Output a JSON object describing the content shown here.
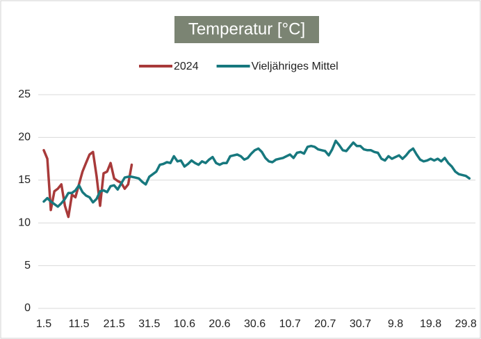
{
  "chart_data": {
    "type": "line",
    "title": "Temperatur [°C]",
    "categories": [
      "1.5",
      null,
      null,
      null,
      null,
      null,
      null,
      null,
      null,
      null,
      "11.5",
      null,
      null,
      null,
      null,
      null,
      null,
      null,
      null,
      null,
      "21.5",
      null,
      null,
      null,
      null,
      null,
      null,
      null,
      null,
      null,
      "31.5",
      null,
      null,
      null,
      null,
      null,
      null,
      null,
      null,
      null,
      "10.6",
      null,
      null,
      null,
      null,
      null,
      null,
      null,
      null,
      null,
      "20.6",
      null,
      null,
      null,
      null,
      null,
      null,
      null,
      null,
      null,
      "30.6",
      null,
      null,
      null,
      null,
      null,
      null,
      null,
      null,
      null,
      "10.7",
      null,
      null,
      null,
      null,
      null,
      null,
      null,
      null,
      null,
      "20.7",
      null,
      null,
      null,
      null,
      null,
      null,
      null,
      null,
      null,
      "30.7",
      null,
      null,
      null,
      null,
      null,
      null,
      null,
      null,
      null,
      "9.8",
      null,
      null,
      null,
      null,
      null,
      null,
      null,
      null,
      null,
      "19.8",
      null,
      null,
      null,
      null,
      null,
      null,
      null,
      null,
      null,
      "29.8",
      null
    ],
    "series": [
      {
        "name": "2024",
        "color": "#a83a3a",
        "values": [
          18.5,
          17.5,
          11.5,
          13.7,
          14.0,
          14.5,
          12.0,
          10.7,
          13.3,
          13.0,
          14.5,
          16.0,
          17.0,
          18.0,
          18.3,
          15.5,
          12.0,
          15.8,
          16.0,
          17.0,
          15.2,
          14.9,
          14.7,
          14.0,
          14.5,
          16.8,
          null,
          null,
          null,
          null,
          null,
          null,
          null,
          null,
          null,
          null,
          null,
          null,
          null,
          null,
          null,
          null,
          null,
          null,
          null,
          null,
          null,
          null,
          null,
          null,
          null,
          null,
          null,
          null,
          null,
          null,
          null,
          null,
          null,
          null,
          null,
          null,
          null,
          null,
          null,
          null,
          null,
          null,
          null,
          null,
          null,
          null,
          null,
          null,
          null,
          null,
          null,
          null,
          null,
          null,
          null,
          null,
          null,
          null,
          null,
          null,
          null,
          null,
          null,
          null,
          null,
          null,
          null,
          null,
          null,
          null,
          null,
          null,
          null,
          null,
          null,
          null,
          null,
          null,
          null,
          null,
          null,
          null,
          null,
          null,
          null,
          null,
          null,
          null,
          null,
          null,
          null,
          null,
          null,
          null,
          null,
          null
        ]
      },
      {
        "name": "Vieljähriges Mittel",
        "color": "#17787e",
        "values": [
          12.5,
          12.9,
          12.5,
          12.2,
          11.9,
          12.3,
          12.8,
          13.5,
          13.5,
          13.8,
          14.4,
          13.6,
          13.2,
          13.0,
          12.4,
          12.8,
          13.7,
          13.8,
          13.6,
          14.3,
          14.4,
          13.9,
          14.6,
          15.3,
          15.4,
          15.4,
          15.3,
          15.2,
          14.8,
          14.5,
          15.4,
          15.7,
          16.0,
          16.8,
          16.9,
          17.1,
          17.0,
          17.8,
          17.2,
          17.3,
          16.6,
          16.9,
          17.3,
          17.0,
          16.8,
          17.2,
          17.0,
          17.4,
          17.7,
          17.0,
          16.8,
          17.0,
          17.0,
          17.8,
          17.9,
          18.0,
          17.8,
          17.4,
          17.6,
          18.1,
          18.5,
          18.7,
          18.3,
          17.6,
          17.2,
          17.1,
          17.4,
          17.5,
          17.6,
          17.8,
          18.0,
          17.6,
          18.2,
          18.3,
          18.1,
          18.9,
          19.0,
          18.9,
          18.6,
          18.5,
          18.4,
          17.9,
          18.6,
          19.6,
          19.1,
          18.5,
          18.4,
          18.9,
          19.4,
          19.0,
          19.0,
          18.6,
          18.5,
          18.5,
          18.3,
          18.2,
          17.5,
          17.3,
          17.8,
          17.5,
          17.7,
          17.9,
          17.5,
          17.9,
          18.4,
          18.7,
          18.0,
          17.4,
          17.2,
          17.3,
          17.5,
          17.3,
          17.5,
          17.2,
          17.6,
          17.0,
          16.6,
          16.0,
          15.7,
          15.6,
          15.5,
          15.2
        ]
      }
    ],
    "ylim": [
      0,
      25
    ],
    "yticks": [
      0,
      5,
      10,
      15,
      20,
      25
    ],
    "grid": true
  }
}
